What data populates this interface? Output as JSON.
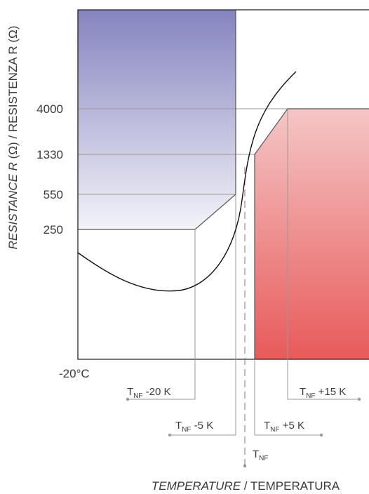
{
  "chart_data": {
    "type": "line",
    "xlabel": {
      "italic": "TEMPERATURE",
      "plain": " / TEMPERATURA"
    },
    "ylabel": {
      "italic": "RESISTANCE R",
      "plain": " (Ω) / RESISTENZA R (Ω)"
    },
    "x_start_label": "-20°C",
    "y_ticks": [
      {
        "value": 4000,
        "label": "4000"
      },
      {
        "value": 1330,
        "label": "1330"
      },
      {
        "value": 550,
        "label": "550"
      },
      {
        "value": 250,
        "label": "250"
      }
    ],
    "markers": [
      {
        "key": "m20",
        "main": "T",
        "sub": "NF",
        "suffix": " -20 K"
      },
      {
        "key": "m5",
        "main": "T",
        "sub": "NF",
        "suffix": " -5 K"
      },
      {
        "key": "tnf",
        "main": "T",
        "sub": "NF",
        "suffix": ""
      },
      {
        "key": "p5",
        "main": "T",
        "sub": "NF",
        "suffix": " +5 K"
      },
      {
        "key": "p15",
        "main": "T",
        "sub": "NF",
        "suffix": " +15 K"
      }
    ],
    "regions": [
      {
        "name": "low-resistance-zone",
        "color_top": "#8584bf",
        "color_bottom": "#f3f3f9"
      },
      {
        "name": "high-resistance-zone",
        "color_top": "#f5c6c6",
        "color_bottom": "#e85a5a"
      }
    ],
    "curve_color": "#111111",
    "grid_color": "#9a9a9a"
  }
}
